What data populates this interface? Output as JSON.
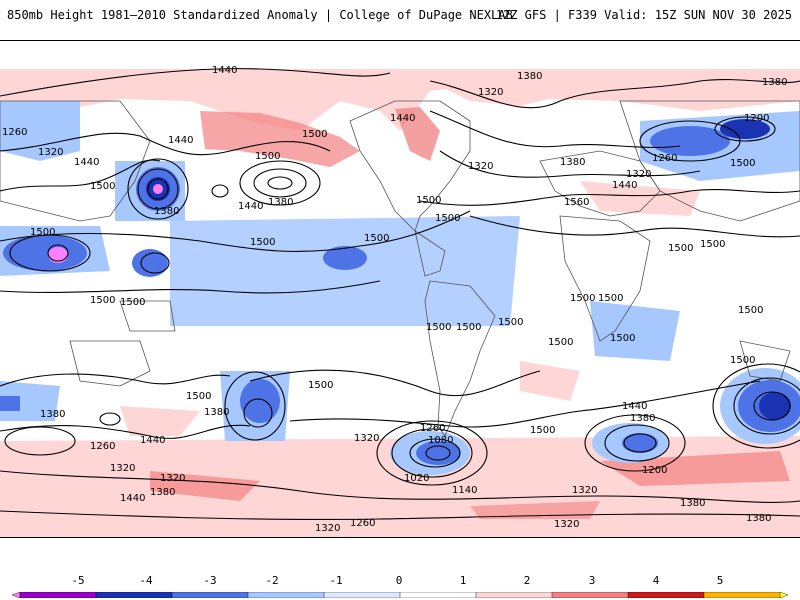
{
  "header": {
    "left_title": "850mb Height 1981–2010 Standardized Anomaly | College of DuPage NEXLAB",
    "right_title": "12Z GFS | F339 Valid: 15Z SUN NOV 30 2025"
  },
  "map": {
    "contour_labels": [
      "1440",
      "1380",
      "1380",
      "1260",
      "1320",
      "1440",
      "1500",
      "1500",
      "1440",
      "1500",
      "1380",
      "1440",
      "1500",
      "1500",
      "1500",
      "1500",
      "1500",
      "1500",
      "1380",
      "1320",
      "1440",
      "1320",
      "1380",
      "1200",
      "1260",
      "1320",
      "1440",
      "1500",
      "1560",
      "1500",
      "1500",
      "1500",
      "1500",
      "1500",
      "1500",
      "1500",
      "1500",
      "1500",
      "1380",
      "1440",
      "1320",
      "1380",
      "1260",
      "1080",
      "1020",
      "1140",
      "1260",
      "1200",
      "1380",
      "1440",
      "1320",
      "1320",
      "1380",
      "1260",
      "1320",
      "1440",
      "1380",
      "1500",
      "1380",
      "1320",
      "1320",
      "1500",
      "1500",
      "1500",
      "1500",
      "1500"
    ]
  },
  "colorbar": {
    "labels": [
      "-5",
      "-4",
      "-3",
      "-2",
      "-1",
      "0",
      "1",
      "2",
      "3",
      "4",
      "5"
    ],
    "colors": [
      "#ff80ff",
      "#9900cc",
      "#1a33b3",
      "#4d73e6",
      "#a6c8ff",
      "#dbe8ff",
      "#ffffff",
      "#ffd6d6",
      "#f28080",
      "#cc1a1a",
      "#ffb300",
      "#ffff33"
    ]
  }
}
